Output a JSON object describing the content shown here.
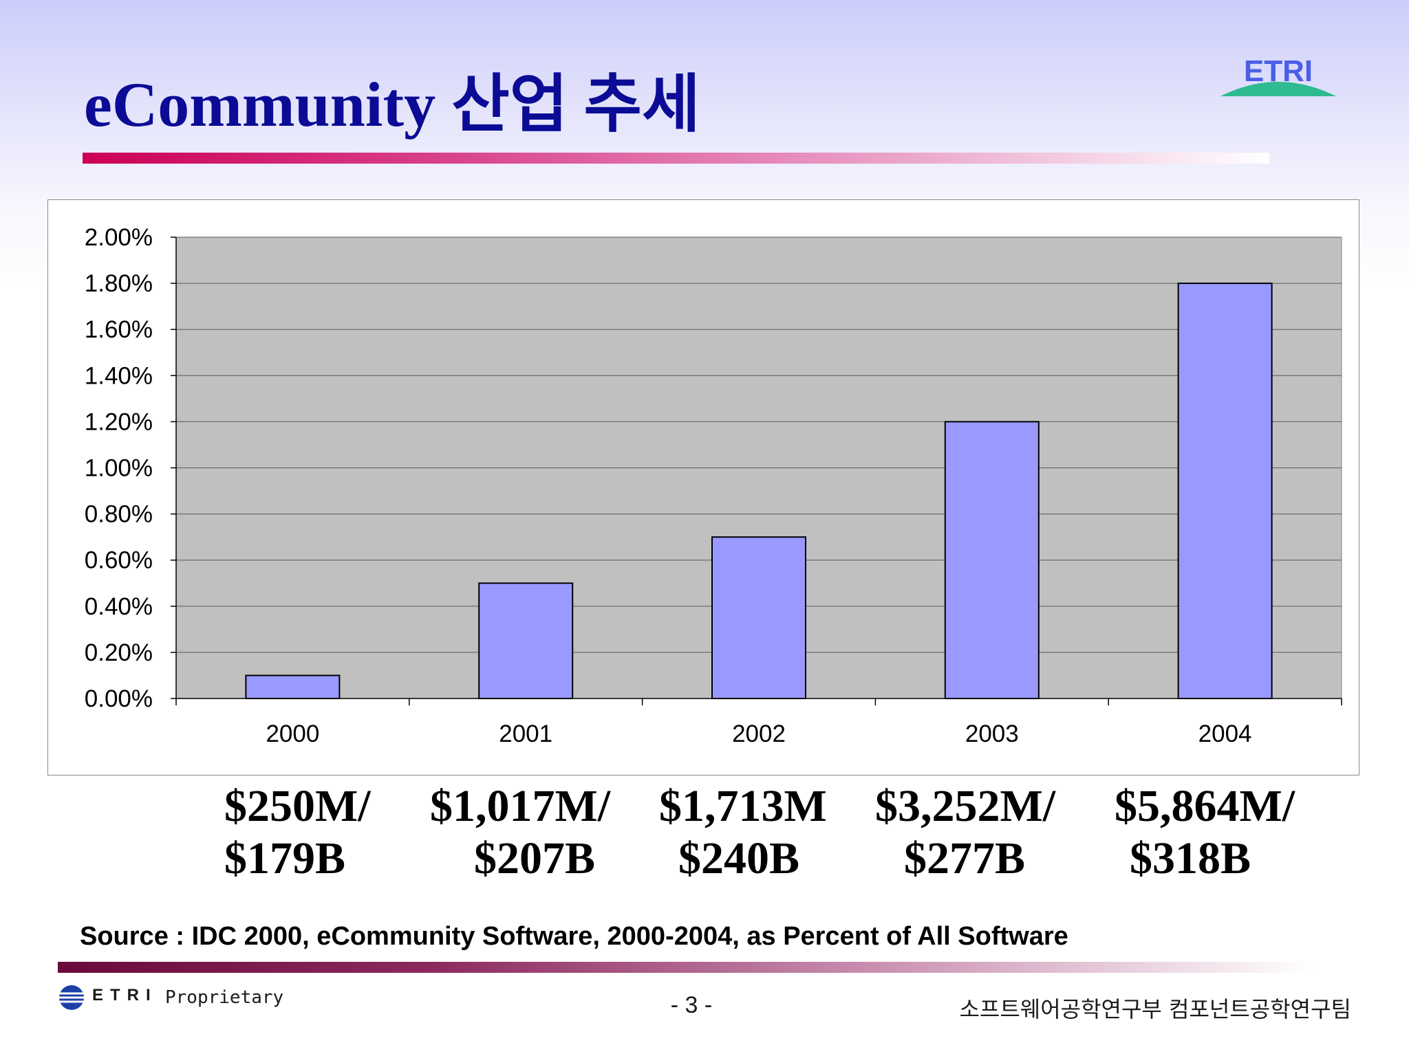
{
  "slide": {
    "title": "eCommunity 산업 추세",
    "logo_text": "ETRI"
  },
  "chart_data": {
    "type": "bar",
    "title": "",
    "xlabel": "",
    "ylabel": "",
    "categories": [
      "2000",
      "2001",
      "2002",
      "2003",
      "2004"
    ],
    "values": [
      0.1,
      0.5,
      0.7,
      1.2,
      1.8
    ],
    "unit": "%",
    "ylim": [
      0,
      2.0
    ],
    "yticks": [
      "0.00%",
      "0.20%",
      "0.40%",
      "0.60%",
      "0.80%",
      "1.00%",
      "1.20%",
      "1.40%",
      "1.60%",
      "1.80%",
      "2.00%"
    ],
    "grid": true,
    "legend": "none",
    "colors": {
      "bar": "#9999ff",
      "plot_bg": "#c0c0c0",
      "frame_bg": "#ffffff"
    }
  },
  "annotations": [
    {
      "line1": "$250M/",
      "line2": "$179B"
    },
    {
      "line1": "$1,017M/",
      "line2": "$207B"
    },
    {
      "line1": "$1,713M",
      "line2": "$240B"
    },
    {
      "line1": "$3,252M/",
      "line2": "$277B"
    },
    {
      "line1": "$5,864M/",
      "line2": "$318B"
    }
  ],
  "source": "Source : IDC 2000,  eCommunity Software, 2000-2004, as Percent of All Software",
  "footer": {
    "org": "ETRI",
    "label": "Proprietary",
    "page": "- 3 -",
    "department": "소프트웨어공학연구부  컴포넌트공학연구팀"
  },
  "colors": {
    "title": "#0b0b96",
    "accent": "#cc0055",
    "logo_blue": "#4a5ee6",
    "logo_red": "#e0162b",
    "logo_green": "#2dbb8f"
  }
}
